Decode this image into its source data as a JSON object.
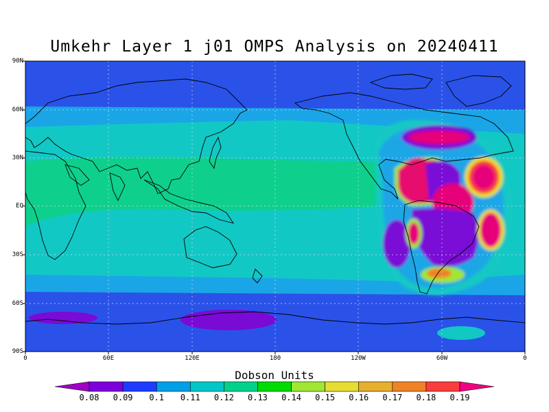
{
  "title": "Umkehr Layer 1 j01 OMPS Analysis on 20240411",
  "axes": {
    "lat_labels": [
      "90N",
      "60N",
      "30N",
      "EQ",
      "30S",
      "60S",
      "90S"
    ],
    "lon_labels": [
      "0",
      "60E",
      "120E",
      "180",
      "120W",
      "60W",
      "0"
    ]
  },
  "colorbar": {
    "title": "Dobson Units",
    "levels": [
      "0.08",
      "0.09",
      "0.1",
      "0.11",
      "0.12",
      "0.13",
      "0.14",
      "0.15",
      "0.16",
      "0.17",
      "0.18",
      "0.19"
    ],
    "colors": [
      "#a000c8",
      "#7d00dc",
      "#1e3cff",
      "#00a0e6",
      "#00c8c8",
      "#00d28c",
      "#00dc00",
      "#a0e632",
      "#e6dc32",
      "#e6af2d",
      "#f08228",
      "#fa3c3c",
      "#f00082"
    ]
  },
  "map_colors": {
    "background": "#2a52e8",
    "band_light": "#1aa6e6",
    "band_cyan": "#12c8c4",
    "band_green": "#0ed08c",
    "low": "#7a0ad6",
    "high_red": "#e60a6e",
    "high_magenta": "#e6007a",
    "land_line": "#000000",
    "grid": "#cfd8ff"
  }
}
